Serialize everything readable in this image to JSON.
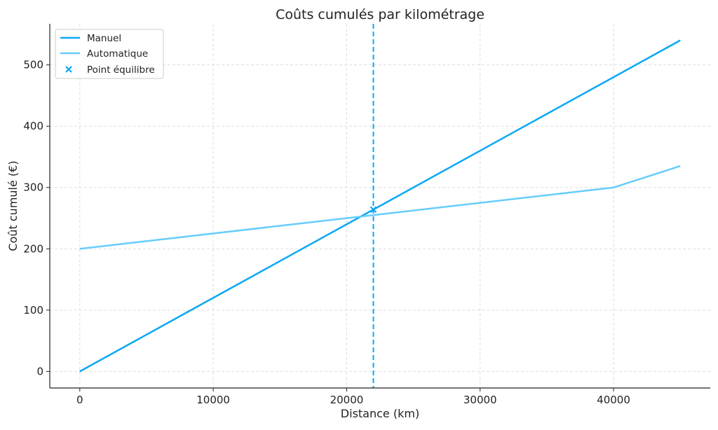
{
  "chart_data": {
    "type": "line",
    "title": "Coûts cumulés par kilométrage",
    "xlabel": "Distance (km)",
    "ylabel": "Coût cumulé (€)",
    "xlim": [
      -2250,
      47250
    ],
    "ylim": [
      -27,
      567
    ],
    "xticks": [
      0,
      10000,
      20000,
      30000,
      40000
    ],
    "yticks": [
      0,
      100,
      200,
      300,
      400,
      500
    ],
    "grid": true,
    "legend_position": "top-left",
    "series": [
      {
        "name": "Manuel",
        "color": "#0aa8f5",
        "x": [
          0,
          45000
        ],
        "y": [
          0,
          540
        ]
      },
      {
        "name": "Automatique",
        "color": "#66cdfa",
        "x": [
          0,
          40000,
          45000
        ],
        "y": [
          200,
          300,
          335
        ]
      }
    ],
    "marker": {
      "name": "Point équilibre",
      "color": "#0aa8f5",
      "x": 22000,
      "y": 264,
      "symbol": "x"
    },
    "vline": {
      "x": 22000,
      "color": "#0aa8f5",
      "style": "dashed"
    }
  }
}
